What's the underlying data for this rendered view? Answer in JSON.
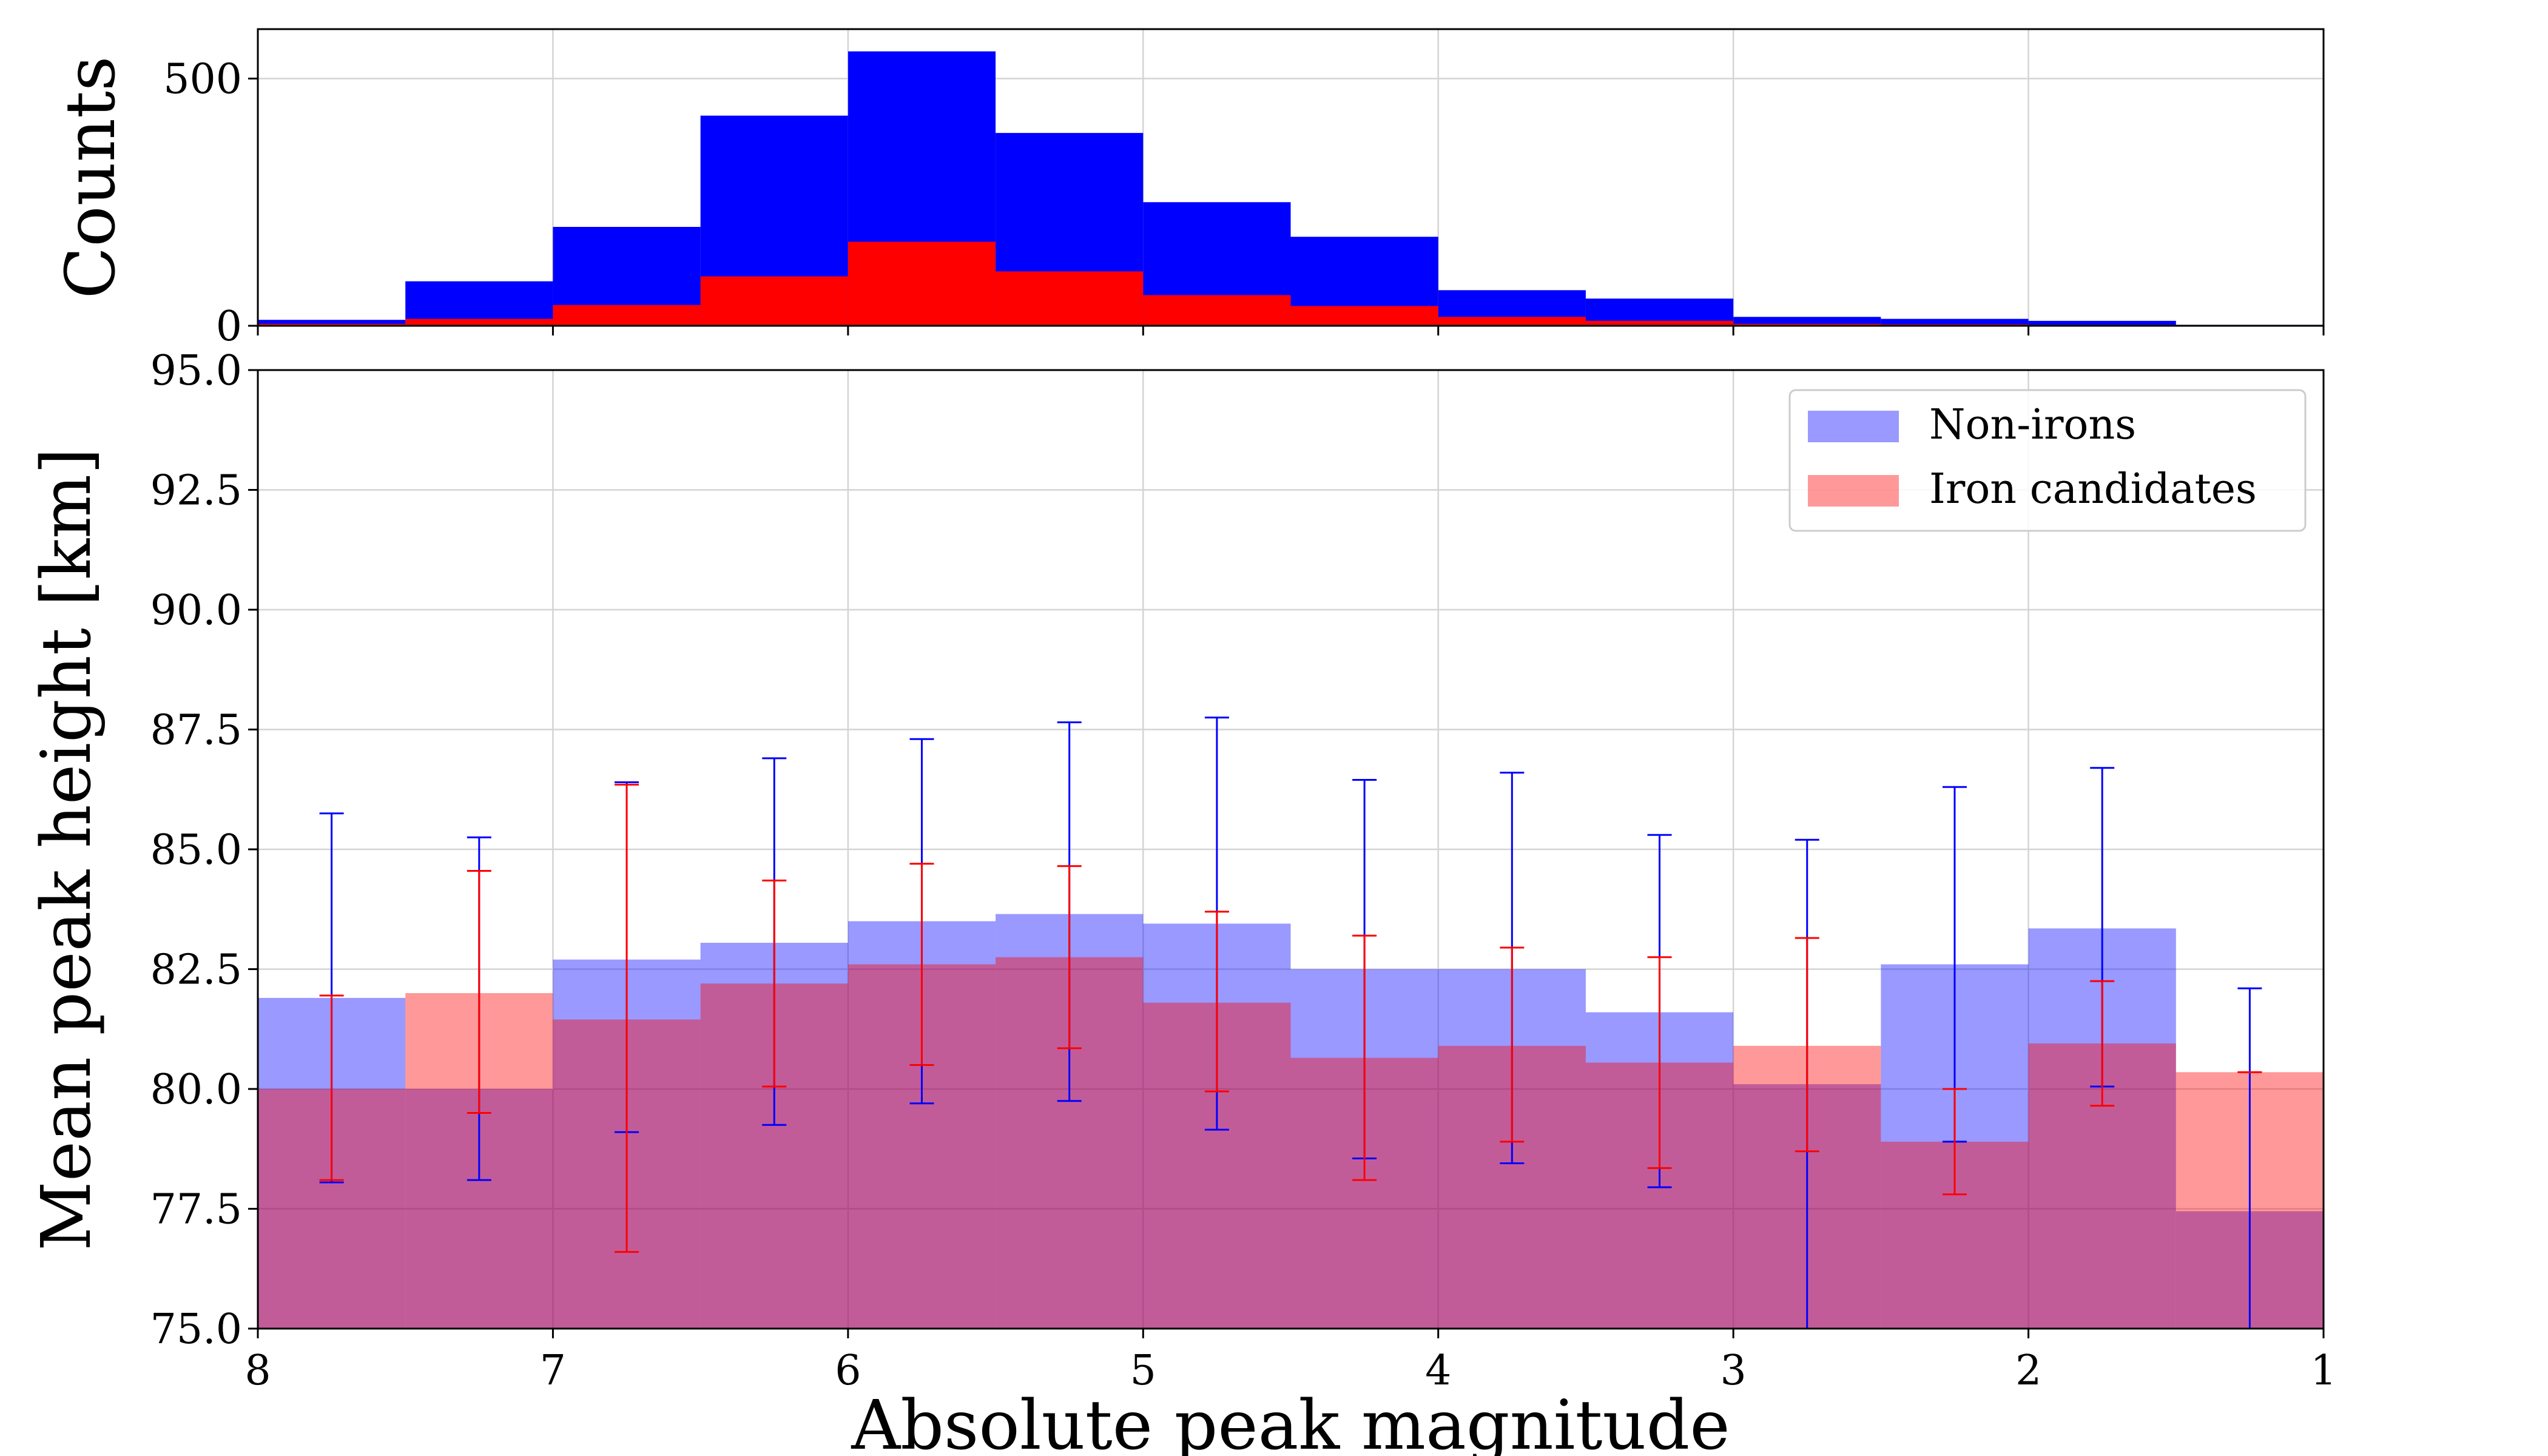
{
  "chart_data": [
    {
      "type": "histogram",
      "panel": "top",
      "ylabel": "Counts",
      "xlim": [
        8,
        1
      ],
      "ylim": [
        0,
        600
      ],
      "yticks": [
        0,
        500
      ],
      "ytick_labels": [
        "0",
        "500"
      ],
      "grid": true,
      "bin_edges": [
        8,
        7.5,
        7,
        6.5,
        6,
        5.5,
        5,
        4.5,
        4,
        3.5,
        3,
        2.5,
        2,
        1.5,
        1
      ],
      "series": [
        {
          "name": "Non-irons",
          "color": "#0000ff",
          "values": [
            12,
            90,
            200,
            425,
            555,
            390,
            250,
            180,
            72,
            55,
            18,
            14,
            10,
            2
          ]
        },
        {
          "name": "Iron candidates",
          "color": "#ff0000",
          "values": [
            4,
            14,
            42,
            100,
            170,
            110,
            62,
            40,
            18,
            10,
            4,
            3,
            2,
            1
          ]
        }
      ]
    },
    {
      "type": "bar",
      "panel": "bottom",
      "xlabel": "Absolute peak magnitude",
      "ylabel": "Mean peak height [km]",
      "xlim": [
        8,
        1
      ],
      "ylim": [
        75,
        95
      ],
      "xticks": [
        8,
        7,
        6,
        5,
        4,
        3,
        2,
        1
      ],
      "xtick_labels": [
        "8",
        "7",
        "6",
        "5",
        "4",
        "3",
        "2",
        "1"
      ],
      "yticks": [
        75,
        77.5,
        80,
        82.5,
        85,
        87.5,
        90,
        92.5,
        95
      ],
      "ytick_labels": [
        "75.0",
        "77.5",
        "80.0",
        "82.5",
        "85.0",
        "87.5",
        "90.0",
        "92.5",
        "95.0"
      ],
      "grid": true,
      "legend": "top-right",
      "bin_edges": [
        8,
        7.5,
        7,
        6.5,
        6,
        5.5,
        5,
        4.5,
        4,
        3.5,
        3,
        2.5,
        2,
        1.5,
        1
      ],
      "bin_centers": [
        7.75,
        7.25,
        6.75,
        6.25,
        5.75,
        5.25,
        4.75,
        4.25,
        3.75,
        3.25,
        2.75,
        2.25,
        1.75,
        1.25
      ],
      "series": [
        {
          "name": "Non-irons",
          "color": "#0000ff",
          "fill": "rgba(0,0,255,0.4)",
          "values": [
            81.9,
            80.0,
            82.7,
            83.05,
            83.5,
            83.65,
            83.45,
            82.5,
            82.5,
            81.6,
            80.1,
            82.6,
            83.35,
            77.45
          ],
          "err_low": [
            78.05,
            78.1,
            79.1,
            79.25,
            79.7,
            79.75,
            79.15,
            78.55,
            78.45,
            77.95,
            75.0,
            78.9,
            80.05,
            75.0
          ],
          "err_high": [
            85.75,
            85.25,
            86.4,
            86.9,
            87.3,
            87.65,
            87.75,
            86.45,
            86.6,
            85.3,
            85.2,
            86.3,
            86.7,
            82.1
          ]
        },
        {
          "name": "Iron candidates",
          "color": "#ff0000",
          "fill": "rgba(255,0,0,0.4)",
          "values": [
            80.0,
            82.0,
            81.45,
            82.2,
            82.6,
            82.75,
            81.8,
            80.65,
            80.9,
            80.55,
            80.9,
            78.9,
            80.95,
            80.35
          ],
          "err_low": [
            78.1,
            79.5,
            76.6,
            80.05,
            80.5,
            80.85,
            79.95,
            78.1,
            78.9,
            78.35,
            78.7,
            77.8,
            79.65,
            80.35
          ],
          "err_high": [
            81.95,
            84.55,
            86.35,
            84.35,
            84.7,
            84.65,
            83.7,
            83.2,
            82.95,
            82.75,
            83.15,
            80.0,
            82.25,
            80.35
          ]
        }
      ]
    }
  ]
}
